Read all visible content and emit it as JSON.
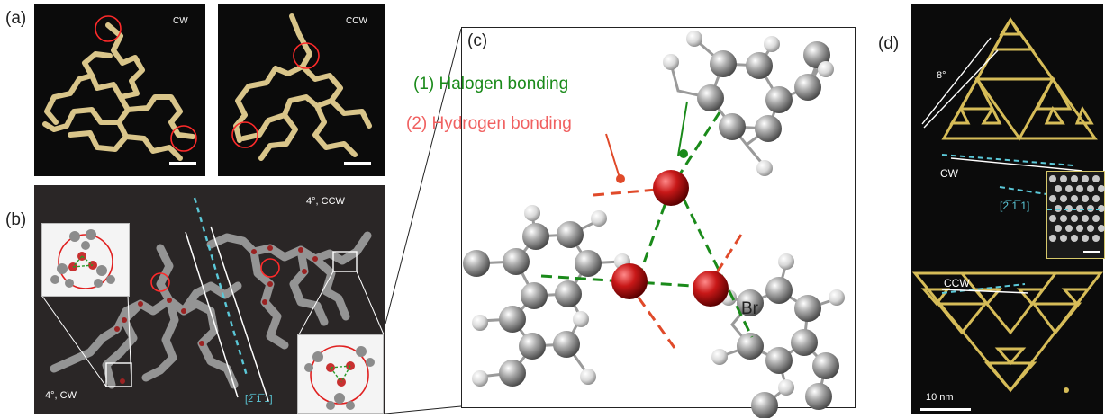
{
  "panels": {
    "a": {
      "label": "(a)",
      "left_tag": "CW",
      "right_tag": "CCW"
    },
    "b": {
      "label": "(b)",
      "tag_top": "4°, CCW",
      "tag_bottom": "4°, CW",
      "direction": "[2̅ 1̅ 1]"
    },
    "c": {
      "label": "(c)",
      "halogen": "(1) Halogen bonding",
      "hydrogen": "(2) Hydrogen bonding",
      "atom": "Br"
    },
    "d": {
      "label": "(d)",
      "angle": "8°",
      "cw": "CW",
      "ccw": "CCW",
      "direction": "[2̅ 1̅ 1]",
      "scale": "10 nm"
    }
  },
  "colors": {
    "halogen_green": "#1a8a1a",
    "hydrogen_red": "#f06060",
    "bromine": "#b01010",
    "cyan": "#5bc8d8",
    "gold": "#c9b35c",
    "arrow_red": "#e02020"
  }
}
